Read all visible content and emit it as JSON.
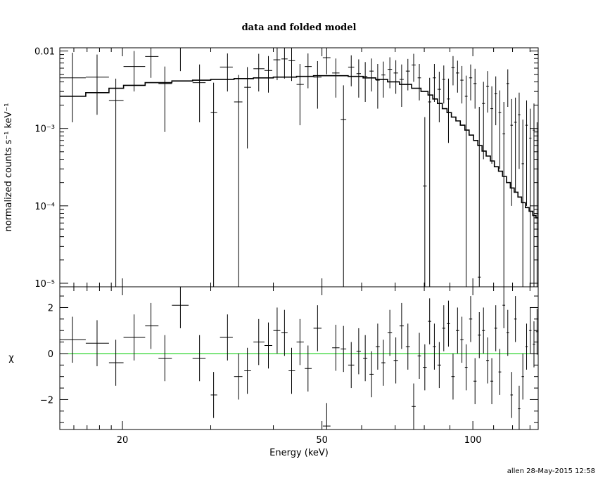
{
  "chart_data": {
    "type": "scatter",
    "title": "data and folded model",
    "xlabel": "Energy (keV)",
    "xscale": "log",
    "xlim": [
      15,
      135
    ],
    "x_ticks": [
      {
        "value": 20,
        "label": "20"
      },
      {
        "value": 50,
        "label": "50"
      },
      {
        "value": 100,
        "label": "100"
      }
    ],
    "footer": "allen 28-May-2015 12:58",
    "top_panel": {
      "ylabel": "normalized counts s⁻¹ keV⁻¹",
      "yscale": "log",
      "ylim": [
        9e-06,
        0.011
      ],
      "y_ticks": [
        {
          "value": 0.01,
          "label": "0.01"
        },
        {
          "value": 0.001,
          "label": "10⁻³"
        },
        {
          "value": 0.0001,
          "label": "10⁻⁴"
        },
        {
          "value": 1e-05,
          "label": "10⁻⁵"
        }
      ],
      "data": [
        {
          "x": 15.9,
          "xlo": 15,
          "xhi": 16.9,
          "y": 0.0045,
          "ylo": 0.0012,
          "yhi": 0.0095
        },
        {
          "x": 17.8,
          "xlo": 16.9,
          "xhi": 18.8,
          "y": 0.0046,
          "ylo": 0.0015,
          "yhi": 0.009
        },
        {
          "x": 19.4,
          "xlo": 18.8,
          "xhi": 20.1,
          "y": 0.0023,
          "ylo": 9e-06,
          "yhi": 0.0044
        },
        {
          "x": 21.1,
          "xlo": 20.1,
          "xhi": 22.2,
          "y": 0.0063,
          "ylo": 0.003,
          "yhi": 0.01
        },
        {
          "x": 22.8,
          "xlo": 22.2,
          "xhi": 23.6,
          "y": 0.0085,
          "ylo": 0.0045,
          "yhi": 0.011
        },
        {
          "x": 24.3,
          "xlo": 23.6,
          "xhi": 25.1,
          "y": 0.0038,
          "ylo": 0.0009,
          "yhi": 0.0063
        },
        {
          "x": 26.1,
          "xlo": 25.1,
          "xhi": 27.1,
          "y": 0.011,
          "ylo": 0.0055,
          "yhi": 0.011
        },
        {
          "x": 28.5,
          "xlo": 27.6,
          "xhi": 29.3,
          "y": 0.0039,
          "ylo": 0.0012,
          "yhi": 0.0067
        },
        {
          "x": 30.4,
          "xlo": 30.0,
          "xhi": 30.9,
          "y": 0.0016,
          "ylo": 9e-06,
          "yhi": 0.0039
        },
        {
          "x": 32.4,
          "xlo": 31.3,
          "xhi": 33.2,
          "y": 0.0062,
          "ylo": 0.003,
          "yhi": 0.0093
        },
        {
          "x": 34.1,
          "xlo": 33.4,
          "xhi": 34.7,
          "y": 0.0022,
          "ylo": 9e-06,
          "yhi": 0.0049
        },
        {
          "x": 35.5,
          "xlo": 35.0,
          "xhi": 36.1,
          "y": 0.0034,
          "ylo": 0.00055,
          "yhi": 0.0062
        },
        {
          "x": 37.4,
          "xlo": 36.5,
          "xhi": 38.4,
          "y": 0.0059,
          "ylo": 0.003,
          "yhi": 0.0092
        },
        {
          "x": 39.1,
          "xlo": 38.4,
          "xhi": 39.8,
          "y": 0.0056,
          "ylo": 0.0029,
          "yhi": 0.0086
        },
        {
          "x": 40.7,
          "xlo": 40.0,
          "xhi": 41.3,
          "y": 0.0077,
          "ylo": 0.0042,
          "yhi": 0.011
        },
        {
          "x": 42.1,
          "xlo": 41.5,
          "xhi": 42.7,
          "y": 0.0079,
          "ylo": 0.0044,
          "yhi": 0.011
        },
        {
          "x": 43.5,
          "xlo": 42.9,
          "xhi": 44.2,
          "y": 0.0075,
          "ylo": 0.0041,
          "yhi": 0.011
        },
        {
          "x": 45.2,
          "xlo": 44.5,
          "xhi": 46.0,
          "y": 0.0037,
          "ylo": 0.0011,
          "yhi": 0.0068
        },
        {
          "x": 46.9,
          "xlo": 46.2,
          "xhi": 47.7,
          "y": 0.0063,
          "ylo": 0.0033,
          "yhi": 0.0093
        },
        {
          "x": 49.0,
          "xlo": 48.1,
          "xhi": 49.9,
          "y": 0.0046,
          "ylo": 0.0018,
          "yhi": 0.0074
        },
        {
          "x": 51.1,
          "xlo": 50.2,
          "xhi": 52.0,
          "y": 0.0082,
          "ylo": 0.005,
          "yhi": 0.011
        },
        {
          "x": 53.3,
          "xlo": 52.4,
          "xhi": 54.2,
          "y": 0.0052,
          "ylo": 0.0025,
          "yhi": 0.008
        },
        {
          "x": 55.2,
          "xlo": 54.5,
          "xhi": 55.9,
          "y": 0.0013,
          "ylo": 9e-06,
          "yhi": 0.0036
        },
        {
          "x": 57.2,
          "xlo": 56.4,
          "xhi": 58.0,
          "y": 0.0062,
          "ylo": 0.0035,
          "yhi": 0.0088
        },
        {
          "x": 59.2,
          "xlo": 58.6,
          "xhi": 59.8,
          "y": 0.0051,
          "ylo": 0.0025,
          "yhi": 0.0078
        },
        {
          "x": 61.0,
          "xlo": 60.4,
          "xhi": 61.6,
          "y": 0.0047,
          "ylo": 0.0022,
          "yhi": 0.0072
        },
        {
          "x": 62.8,
          "xlo": 62.2,
          "xhi": 63.4,
          "y": 0.0055,
          "ylo": 0.003,
          "yhi": 0.008
        },
        {
          "x": 64.6,
          "xlo": 64.0,
          "xhi": 65.2,
          "y": 0.0042,
          "ylo": 0.0018,
          "yhi": 0.0068
        },
        {
          "x": 66.3,
          "xlo": 65.7,
          "xhi": 66.9,
          "y": 0.0049,
          "ylo": 0.0025,
          "yhi": 0.0073
        },
        {
          "x": 68.3,
          "xlo": 67.6,
          "xhi": 69.0,
          "y": 0.0058,
          "ylo": 0.0033,
          "yhi": 0.0083
        },
        {
          "x": 70.2,
          "xlo": 69.5,
          "xhi": 70.9,
          "y": 0.0052,
          "ylo": 0.0028,
          "yhi": 0.0076
        },
        {
          "x": 72.1,
          "xlo": 71.4,
          "xhi": 72.8,
          "y": 0.0043,
          "ylo": 0.0019,
          "yhi": 0.0067
        },
        {
          "x": 74.2,
          "xlo": 73.5,
          "xhi": 74.9,
          "y": 0.0055,
          "ylo": 0.0031,
          "yhi": 0.0079
        },
        {
          "x": 76.2,
          "xlo": 75.5,
          "xhi": 76.9,
          "y": 0.0066,
          "ylo": 0.004,
          "yhi": 0.0092
        },
        {
          "x": 78.2,
          "xlo": 77.6,
          "xhi": 78.8,
          "y": 0.0045,
          "ylo": 0.0023,
          "yhi": 0.0068
        },
        {
          "x": 80.2,
          "xlo": 79.5,
          "xhi": 80.9,
          "y": 0.00018,
          "ylo": 9e-06,
          "yhi": 0.0014
        },
        {
          "x": 82.0,
          "xlo": 81.4,
          "xhi": 82.6,
          "y": 0.0022,
          "ylo": 9e-06,
          "yhi": 0.0045
        },
        {
          "x": 83.8,
          "xlo": 83.2,
          "xhi": 84.4,
          "y": 0.0045,
          "ylo": 0.0022,
          "yhi": 0.0068
        },
        {
          "x": 85.7,
          "xlo": 85.0,
          "xhi": 86.4,
          "y": 0.0032,
          "ylo": 0.0012,
          "yhi": 0.0054
        },
        {
          "x": 87.5,
          "xlo": 86.9,
          "xhi": 88.1,
          "y": 0.0043,
          "ylo": 0.0021,
          "yhi": 0.0065
        },
        {
          "x": 89.4,
          "xlo": 88.8,
          "xhi": 90.0,
          "y": 0.0024,
          "ylo": 0.00065,
          "yhi": 0.0044
        },
        {
          "x": 91.3,
          "xlo": 90.6,
          "xhi": 92.0,
          "y": 0.0061,
          "ylo": 0.0036,
          "yhi": 0.0086
        },
        {
          "x": 93.2,
          "xlo": 92.5,
          "xhi": 93.9,
          "y": 0.0052,
          "ylo": 0.0029,
          "yhi": 0.0075
        },
        {
          "x": 95.1,
          "xlo": 94.4,
          "xhi": 95.8,
          "y": 0.0042,
          "ylo": 0.0021,
          "yhi": 0.0064
        },
        {
          "x": 97.0,
          "xlo": 96.4,
          "xhi": 97.6,
          "y": 0.0026,
          "ylo": 9e-06,
          "yhi": 0.0048
        },
        {
          "x": 99.0,
          "xlo": 98.3,
          "xhi": 99.7,
          "y": 0.0045,
          "ylo": 0.0023,
          "yhi": 0.0067
        },
        {
          "x": 101.0,
          "xlo": 100.3,
          "xhi": 101.7,
          "y": 0.0038,
          "ylo": 0.0018,
          "yhi": 0.0059
        },
        {
          "x": 103.0,
          "xlo": 102.3,
          "xhi": 103.7,
          "y": 1.2e-05,
          "ylo": 9e-06,
          "yhi": 0.0019
        },
        {
          "x": 105.0,
          "xlo": 104.3,
          "xhi": 105.7,
          "y": 0.0021,
          "ylo": 0.0004,
          "yhi": 0.004
        },
        {
          "x": 107.0,
          "xlo": 106.3,
          "xhi": 107.7,
          "y": 0.0035,
          "ylo": 0.0016,
          "yhi": 0.0055
        },
        {
          "x": 109.1,
          "xlo": 108.4,
          "xhi": 109.8,
          "y": 0.0018,
          "ylo": 0.00035,
          "yhi": 0.0035
        },
        {
          "x": 111.1,
          "xlo": 110.4,
          "xhi": 111.8,
          "y": 0.0028,
          "ylo": 0.0011,
          "yhi": 0.0047
        },
        {
          "x": 113.2,
          "xlo": 112.5,
          "xhi": 113.9,
          "y": 0.0016,
          "ylo": 0.0003,
          "yhi": 0.0031
        },
        {
          "x": 115.3,
          "xlo": 114.6,
          "xhi": 116.0,
          "y": 0.00085,
          "ylo": 9e-06,
          "yhi": 0.0022
        },
        {
          "x": 117.4,
          "xlo": 116.7,
          "xhi": 118.1,
          "y": 0.0038,
          "ylo": 0.0019,
          "yhi": 0.0058
        },
        {
          "x": 119.5,
          "xlo": 118.8,
          "xhi": 120.2,
          "y": 0.0011,
          "ylo": 0.0001,
          "yhi": 0.0024
        },
        {
          "x": 121.6,
          "xlo": 120.9,
          "xhi": 122.3,
          "y": 0.0012,
          "ylo": 0.00015,
          "yhi": 0.0025
        },
        {
          "x": 123.7,
          "xlo": 123.0,
          "xhi": 124.4,
          "y": 0.0015,
          "ylo": 0.0003,
          "yhi": 0.0029
        },
        {
          "x": 125.8,
          "xlo": 125.1,
          "xhi": 126.5,
          "y": 0.00035,
          "ylo": 9e-06,
          "yhi": 0.0013
        },
        {
          "x": 128.0,
          "xlo": 127.3,
          "xhi": 128.7,
          "y": 0.0011,
          "ylo": 0.0001,
          "yhi": 0.0023
        },
        {
          "x": 130.2,
          "xlo": 129.5,
          "xhi": 130.9,
          "y": 0.00075,
          "ylo": 9e-06,
          "yhi": 0.0018
        },
        {
          "x": 132.4,
          "xlo": 131.7,
          "xhi": 133.1,
          "y": 0.00095,
          "ylo": 9e-06,
          "yhi": 0.0021
        },
        {
          "x": 134.3,
          "xlo": 133.6,
          "xhi": 135.0,
          "y": 0.0004,
          "ylo": 9e-06,
          "yhi": 0.0012
        }
      ],
      "model": {
        "edges": [
          15,
          16.9,
          18.8,
          20.1,
          22.2,
          25.1,
          27.6,
          30.0,
          33.4,
          36.5,
          40.0,
          44.5,
          48.1,
          52.0,
          56.4,
          60.4,
          64.0,
          67.6,
          71.4,
          75.5,
          78.8,
          81.4,
          83.2,
          85.0,
          86.9,
          88.8,
          90.6,
          92.5,
          94.4,
          96.4,
          98.3,
          100.3,
          102.3,
          104.3,
          106.3,
          108.4,
          110.4,
          112.5,
          114.6,
          116.7,
          118.8,
          120.9,
          123.0,
          125.1,
          127.3,
          129.5,
          131.7,
          133.6,
          135.0
        ],
        "values": [
          0.0026,
          0.0029,
          0.0033,
          0.0036,
          0.0039,
          0.0041,
          0.0042,
          0.0043,
          0.0044,
          0.0045,
          0.0046,
          0.0047,
          0.0048,
          0.0048,
          0.0047,
          0.0045,
          0.0043,
          0.004,
          0.0037,
          0.0033,
          0.003,
          0.0027,
          0.0024,
          0.0021,
          0.0018,
          0.0016,
          0.0014,
          0.00125,
          0.0011,
          0.00095,
          0.00082,
          0.0007,
          0.0006,
          0.00051,
          0.00044,
          0.00038,
          0.00032,
          0.00028,
          0.00024,
          0.0002,
          0.00017,
          0.00015,
          0.00013,
          0.00011,
          9.5e-05,
          8.5e-05,
          7.5e-05,
          7e-05
        ]
      }
    },
    "bottom_panel": {
      "ylabel": "χ",
      "ylim": [
        -3.3,
        2.9
      ],
      "y_ticks": [
        {
          "value": 2,
          "label": "2"
        },
        {
          "value": 0,
          "label": "0"
        },
        {
          "value": -2,
          "label": "−2"
        }
      ],
      "zero_line_color": "#00cc00",
      "data": [
        {
          "x": 15.9,
          "xlo": 15,
          "xhi": 16.9,
          "y": 0.6
        },
        {
          "x": 17.8,
          "xlo": 16.9,
          "xhi": 18.8,
          "y": 0.45
        },
        {
          "x": 19.4,
          "xlo": 18.8,
          "xhi": 20.1,
          "y": -0.4
        },
        {
          "x": 21.1,
          "xlo": 20.1,
          "xhi": 22.2,
          "y": 0.7
        },
        {
          "x": 22.8,
          "xlo": 22.2,
          "xhi": 23.6,
          "y": 1.2
        },
        {
          "x": 24.3,
          "xlo": 23.6,
          "xhi": 25.1,
          "y": -0.2
        },
        {
          "x": 26.1,
          "xlo": 25.1,
          "xhi": 27.1,
          "y": 2.1
        },
        {
          "x": 28.5,
          "xlo": 27.6,
          "xhi": 29.3,
          "y": -0.2
        },
        {
          "x": 30.4,
          "xlo": 30.0,
          "xhi": 30.9,
          "y": -1.8
        },
        {
          "x": 32.4,
          "xlo": 31.3,
          "xhi": 33.2,
          "y": 0.7
        },
        {
          "x": 34.1,
          "xlo": 33.4,
          "xhi": 34.7,
          "y": -1.0
        },
        {
          "x": 35.5,
          "xlo": 35.0,
          "xhi": 36.1,
          "y": -0.75
        },
        {
          "x": 37.4,
          "xlo": 36.5,
          "xhi": 38.4,
          "y": 0.5
        },
        {
          "x": 39.1,
          "xlo": 38.4,
          "xhi": 39.8,
          "y": 0.35
        },
        {
          "x": 40.7,
          "xlo": 40.0,
          "xhi": 41.3,
          "y": 1.0
        },
        {
          "x": 42.1,
          "xlo": 41.5,
          "xhi": 42.7,
          "y": 0.9
        },
        {
          "x": 43.5,
          "xlo": 42.9,
          "xhi": 44.2,
          "y": -0.75
        },
        {
          "x": 45.2,
          "xlo": 44.5,
          "xhi": 46.0,
          "y": 0.5
        },
        {
          "x": 46.9,
          "xlo": 46.2,
          "xhi": 47.7,
          "y": -0.65
        },
        {
          "x": 49.0,
          "xlo": 48.1,
          "xhi": 49.9,
          "y": 1.1
        },
        {
          "x": 51.1,
          "xlo": 50.2,
          "xhi": 52.0,
          "y": -3.15
        },
        {
          "x": 53.3,
          "xlo": 52.4,
          "xhi": 54.2,
          "y": 0.25
        },
        {
          "x": 55.2,
          "xlo": 54.5,
          "xhi": 55.9,
          "y": 0.2
        },
        {
          "x": 57.2,
          "xlo": 56.4,
          "xhi": 58.0,
          "y": -0.5
        },
        {
          "x": 59.2,
          "xlo": 58.6,
          "xhi": 59.8,
          "y": 0.1
        },
        {
          "x": 61.0,
          "xlo": 60.4,
          "xhi": 61.6,
          "y": -0.2
        },
        {
          "x": 62.8,
          "xlo": 62.2,
          "xhi": 63.4,
          "y": -0.9
        },
        {
          "x": 64.6,
          "xlo": 64.0,
          "xhi": 65.2,
          "y": 0.3
        },
        {
          "x": 66.3,
          "xlo": 65.7,
          "xhi": 66.9,
          "y": -0.4
        },
        {
          "x": 68.3,
          "xlo": 67.6,
          "xhi": 69.0,
          "y": 0.9
        },
        {
          "x": 70.2,
          "xlo": 69.5,
          "xhi": 70.9,
          "y": -0.3
        },
        {
          "x": 72.1,
          "xlo": 71.4,
          "xhi": 72.8,
          "y": 1.2
        },
        {
          "x": 74.2,
          "xlo": 73.5,
          "xhi": 74.9,
          "y": 0.3
        },
        {
          "x": 76.2,
          "xlo": 75.5,
          "xhi": 76.9,
          "y": -2.3
        },
        {
          "x": 78.2,
          "xlo": 77.6,
          "xhi": 78.8,
          "y": -0.1
        },
        {
          "x": 80.2,
          "xlo": 79.5,
          "xhi": 80.9,
          "y": -0.6
        },
        {
          "x": 82.0,
          "xlo": 81.4,
          "xhi": 82.6,
          "y": 1.4
        },
        {
          "x": 83.8,
          "xlo": 83.2,
          "xhi": 84.4,
          "y": 0.3
        },
        {
          "x": 85.7,
          "xlo": 85.0,
          "xhi": 86.4,
          "y": -0.5
        },
        {
          "x": 87.5,
          "xlo": 86.9,
          "xhi": 88.1,
          "y": 1.1
        },
        {
          "x": 89.4,
          "xlo": 88.8,
          "xhi": 90.0,
          "y": 1.3
        },
        {
          "x": 91.3,
          "xlo": 90.6,
          "xhi": 92.0,
          "y": -1.0
        },
        {
          "x": 93.2,
          "xlo": 92.5,
          "xhi": 93.9,
          "y": 1.0
        },
        {
          "x": 95.1,
          "xlo": 94.4,
          "xhi": 95.8,
          "y": 0.6
        },
        {
          "x": 97.0,
          "xlo": 96.4,
          "xhi": 97.6,
          "y": -0.6
        },
        {
          "x": 99.0,
          "xlo": 98.3,
          "xhi": 99.7,
          "y": 1.5
        },
        {
          "x": 101.0,
          "xlo": 100.3,
          "xhi": 101.7,
          "y": -1.2
        },
        {
          "x": 103.0,
          "xlo": 102.3,
          "xhi": 103.7,
          "y": 0.8
        },
        {
          "x": 105.0,
          "xlo": 104.3,
          "xhi": 105.7,
          "y": 1.0
        },
        {
          "x": 107.0,
          "xlo": 106.3,
          "xhi": 107.7,
          "y": -0.3
        },
        {
          "x": 109.1,
          "xlo": 108.4,
          "xhi": 109.8,
          "y": -1.2
        },
        {
          "x": 111.1,
          "xlo": 110.4,
          "xhi": 111.8,
          "y": 1.1
        },
        {
          "x": 113.2,
          "xlo": 112.5,
          "xhi": 113.9,
          "y": -0.8
        },
        {
          "x": 115.3,
          "xlo": 114.6,
          "xhi": 116.0,
          "y": 2.1
        },
        {
          "x": 117.4,
          "xlo": 116.7,
          "xhi": 118.1,
          "y": 0.9
        },
        {
          "x": 119.5,
          "xlo": 118.8,
          "xhi": 120.2,
          "y": -1.8
        },
        {
          "x": 121.6,
          "xlo": 120.9,
          "xhi": 122.3,
          "y": 1.5
        },
        {
          "x": 123.7,
          "xlo": 123.0,
          "xhi": 124.4,
          "y": -2.4
        },
        {
          "x": 125.8,
          "xlo": 125.1,
          "xhi": 126.5,
          "y": -1.0
        },
        {
          "x": 128.0,
          "xlo": 127.3,
          "xhi": 128.7,
          "y": 0.3
        },
        {
          "x": 130.2,
          "xlo": 129.5,
          "xhi": 130.9,
          "y": 1.0
        },
        {
          "x": 132.4,
          "xlo": 131.7,
          "xhi": 133.1,
          "y": 0.4
        },
        {
          "x": 134.3,
          "xlo": 133.6,
          "xhi": 135.0,
          "y": 0.95
        }
      ]
    }
  }
}
